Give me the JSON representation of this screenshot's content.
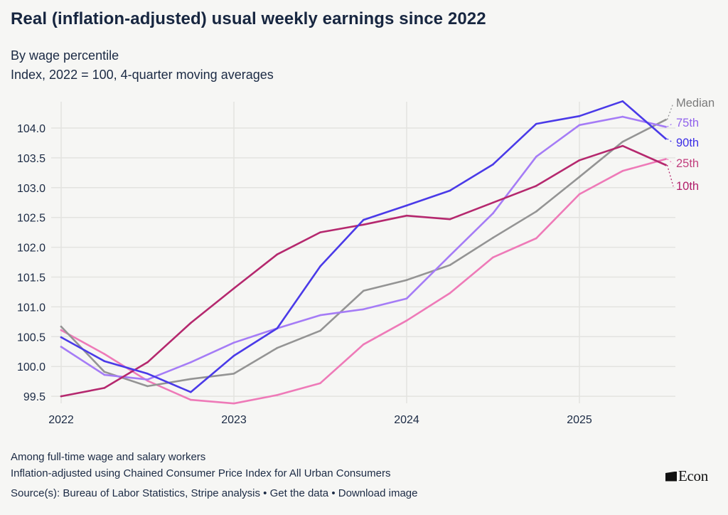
{
  "header": {
    "title": "Real (inflation-adjusted) usual weekly earnings since 2022",
    "subtitle_line1": "By wage percentile",
    "subtitle_line2": "Index, 2022 = 100, 4-quarter moving averages"
  },
  "chart_data": {
    "type": "line",
    "title": "Real (inflation-adjusted) usual weekly earnings since 2022",
    "subtitle": "By wage percentile; Index, 2022 = 100, 4-quarter moving averages",
    "xlabel": "",
    "ylabel": "",
    "x": [
      "2022Q1",
      "2022Q2",
      "2022Q3",
      "2022Q4",
      "2023Q1",
      "2023Q2",
      "2023Q3",
      "2023Q4",
      "2024Q1",
      "2024Q2",
      "2024Q3",
      "2024Q4",
      "2025Q1",
      "2025Q2",
      "2025Q3"
    ],
    "x_ticks": [
      {
        "label": "2022",
        "index": 0
      },
      {
        "label": "2023",
        "index": 4
      },
      {
        "label": "2024",
        "index": 8
      },
      {
        "label": "2025",
        "index": 12
      }
    ],
    "y_ticks": [
      "99.5",
      "100.0",
      "100.5",
      "101.0",
      "101.5",
      "102.0",
      "102.5",
      "103.0",
      "103.5",
      "104.0"
    ],
    "ylim": [
      99.5,
      104.0
    ],
    "grid": true,
    "legend": "direct labels at right end of lines",
    "series": [
      {
        "name": "Median",
        "label": "Median",
        "color": "#949494",
        "label_color": "#7a7a7a",
        "values": [
          100.67,
          99.91,
          99.67,
          99.79,
          99.88,
          100.31,
          100.6,
          101.27,
          101.45,
          101.7,
          102.16,
          102.6,
          103.18,
          103.77,
          104.14
        ]
      },
      {
        "name": "75th",
        "label": "75th",
        "color": "#a57cf6",
        "label_color": "#9163ec",
        "values": [
          100.33,
          99.86,
          99.78,
          100.07,
          100.4,
          100.64,
          100.86,
          100.96,
          101.14,
          101.86,
          102.57,
          103.52,
          104.05,
          104.19,
          104.02
        ]
      },
      {
        "name": "90th",
        "label": "90th",
        "color": "#4a3ae8",
        "label_color": "#3d2ee6",
        "values": [
          100.49,
          100.09,
          99.88,
          99.57,
          100.18,
          100.64,
          101.68,
          102.46,
          102.7,
          102.95,
          103.39,
          104.07,
          104.2,
          104.45,
          103.82
        ]
      },
      {
        "name": "25th",
        "label": "25th",
        "color": "#ee7ab8",
        "label_color": "#c2407f",
        "values": [
          100.61,
          100.21,
          99.76,
          99.44,
          99.38,
          99.52,
          99.72,
          100.37,
          100.77,
          101.23,
          101.83,
          102.15,
          102.89,
          103.28,
          103.48
        ]
      },
      {
        "name": "10th",
        "label": "10th",
        "color": "#b5286e",
        "label_color": "#b01e6a",
        "values": [
          99.5,
          99.64,
          100.07,
          100.73,
          101.31,
          101.88,
          102.25,
          102.38,
          102.53,
          102.47,
          102.75,
          103.03,
          103.46,
          103.7,
          103.38
        ]
      }
    ]
  },
  "footer": {
    "note1": "Among full-time wage and salary workers",
    "note2": "Inflation-adjusted using Chained Consumer Price Index for All Urban Consumers",
    "source_prefix": "Source(s): Bureau of Labor Statistics, Stripe analysis",
    "separator": " • ",
    "get_data_link": "Get the data",
    "download_link": "Download image"
  },
  "logo": {
    "text": "Econ",
    "icon": "flag-icon"
  }
}
